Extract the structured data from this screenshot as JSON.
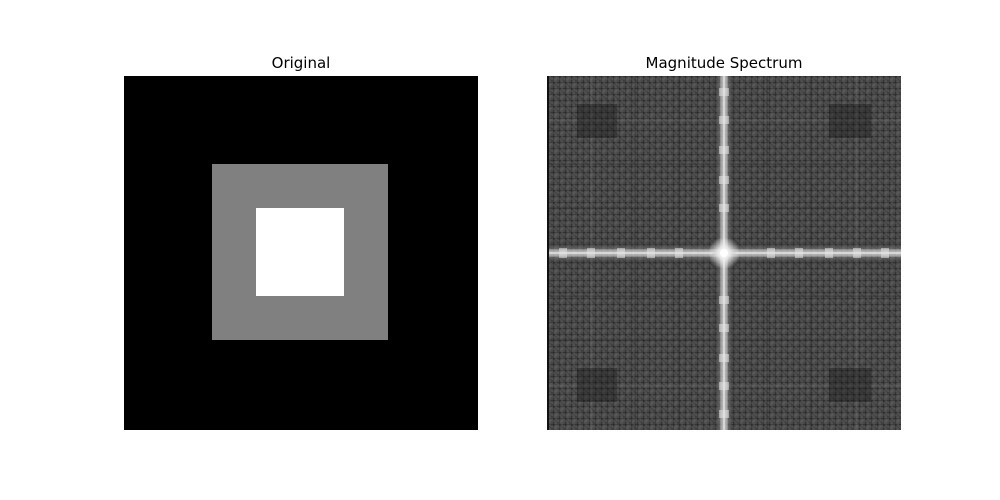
{
  "panels": [
    {
      "title": "Original",
      "image_type": "grayscale",
      "description_visible": "black background with centered gray square and smaller centered white square"
    },
    {
      "title": "Magnitude Spectrum",
      "image_type": "grayscale"
    }
  ]
}
